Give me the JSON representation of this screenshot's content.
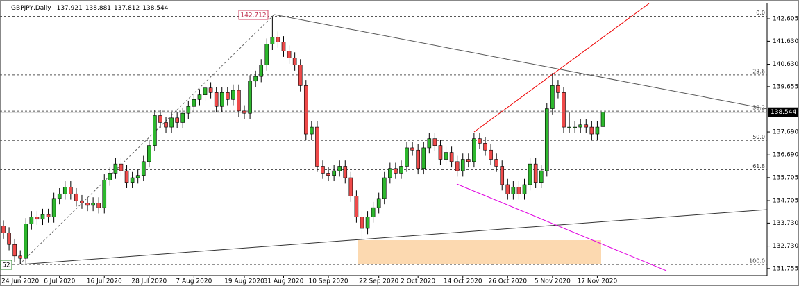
{
  "chart_data": {
    "type": "candlestick",
    "symbol": "GBPJPY,Daily",
    "peak_label": "142.712",
    "corner_label": "52",
    "ylim": [
      131.45,
      143.3
    ],
    "yticks": [
      142.605,
      {
        "value": 141.63,
        "label": "141.630"
      },
      {
        "value": 140.63,
        "label": "140.630"
      },
      139.655,
      {
        "value": 137.69,
        "label": "137.690"
      },
      {
        "value": 136.69,
        "label": "136.690"
      },
      135.705,
      134.705,
      {
        "value": 133.73,
        "label": "133.730"
      },
      {
        "value": 132.73,
        "label": "132.730"
      },
      131.755
    ],
    "fib_levels": [
      {
        "label": "0.0",
        "price": 142.712
      },
      {
        "label": "23.6",
        "price": 140.168
      },
      {
        "label": "38.2",
        "price": 138.593
      },
      {
        "label": "50.0",
        "price": 137.321
      },
      {
        "label": "61.8",
        "price": 136.049
      },
      {
        "label": "100.0",
        "price": 131.93
      }
    ],
    "up_color": "#2db82d",
    "down_color": "#ef4a4a",
    "categories": [
      null,
      null,
      null,
      "24 Jun 2020",
      null,
      null,
      null,
      null,
      null,
      null,
      "6 Jul 2020",
      null,
      null,
      null,
      null,
      null,
      null,
      null,
      "16 Jul 2020",
      null,
      null,
      null,
      null,
      null,
      null,
      null,
      "28 Jul 2020",
      null,
      null,
      null,
      null,
      null,
      null,
      null,
      "7 Aug 2020",
      null,
      null,
      null,
      null,
      null,
      null,
      null,
      null,
      "19 Aug 2020",
      null,
      null,
      null,
      null,
      null,
      null,
      "31 Aug 2020",
      null,
      null,
      null,
      null,
      null,
      null,
      null,
      "10 Sep 2020",
      null,
      null,
      null,
      null,
      null,
      null,
      null,
      null,
      "22 Sep 2020",
      null,
      null,
      null,
      null,
      null,
      null,
      "2 Oct 2020",
      null,
      null,
      null,
      null,
      null,
      null,
      null,
      "14 Oct 2020",
      null,
      null,
      null,
      null,
      null,
      null,
      null,
      "26 Oct 2020",
      null,
      null,
      null,
      null,
      null,
      null,
      null,
      "5 Nov 2020",
      null,
      null,
      null,
      null,
      null,
      null,
      null,
      "17 Nov 2020",
      null
    ],
    "ohlc": [
      [
        133.6,
        133.85,
        133.05,
        133.3
      ],
      [
        133.3,
        133.55,
        132.55,
        132.8
      ],
      [
        132.8,
        133.05,
        132.05,
        132.3
      ],
      [
        132.3,
        132.55,
        131.95,
        132.2
      ],
      [
        132.2,
        133.95,
        131.95,
        133.7
      ],
      [
        133.7,
        134.25,
        133.45,
        134.0
      ],
      [
        134.0,
        134.25,
        133.65,
        133.9
      ],
      [
        133.9,
        134.35,
        133.65,
        134.1
      ],
      [
        134.1,
        134.35,
        133.75,
        134.0
      ],
      [
        134.0,
        135.05,
        133.75,
        134.8
      ],
      [
        134.8,
        135.25,
        134.55,
        135.0
      ],
      [
        135.0,
        135.55,
        134.75,
        135.3
      ],
      [
        135.3,
        135.55,
        134.75,
        135.0
      ],
      [
        135.0,
        135.25,
        134.45,
        134.7
      ],
      [
        134.7,
        134.95,
        134.35,
        134.6
      ],
      [
        134.6,
        134.85,
        134.25,
        134.5
      ],
      [
        134.5,
        134.85,
        134.25,
        134.6
      ],
      [
        134.6,
        134.85,
        134.15,
        134.4
      ],
      [
        134.4,
        135.85,
        134.15,
        135.6
      ],
      [
        135.6,
        136.15,
        135.35,
        135.9
      ],
      [
        135.9,
        136.55,
        135.65,
        136.3
      ],
      [
        136.3,
        136.55,
        135.75,
        136.0
      ],
      [
        136.0,
        136.25,
        135.25,
        135.5
      ],
      [
        135.5,
        135.95,
        135.25,
        135.7
      ],
      [
        135.7,
        136.05,
        135.45,
        135.8
      ],
      [
        135.8,
        136.65,
        135.55,
        136.4
      ],
      [
        136.4,
        137.35,
        136.15,
        137.1
      ],
      [
        137.1,
        138.65,
        136.85,
        138.4
      ],
      [
        138.4,
        138.65,
        137.85,
        138.1
      ],
      [
        138.1,
        138.35,
        137.65,
        137.9
      ],
      [
        137.9,
        138.55,
        137.65,
        138.3
      ],
      [
        138.3,
        138.55,
        137.85,
        138.1
      ],
      [
        138.1,
        138.75,
        137.85,
        138.5
      ],
      [
        138.5,
        139.05,
        138.25,
        138.8
      ],
      [
        138.8,
        139.35,
        138.55,
        139.1
      ],
      [
        139.1,
        139.55,
        138.85,
        139.3
      ],
      [
        139.3,
        139.85,
        139.05,
        139.6
      ],
      [
        139.6,
        139.85,
        139.15,
        139.4
      ],
      [
        139.4,
        139.65,
        138.55,
        138.8
      ],
      [
        138.8,
        139.65,
        138.55,
        139.4
      ],
      [
        139.4,
        139.65,
        138.85,
        139.1
      ],
      [
        139.1,
        139.75,
        138.85,
        139.5
      ],
      [
        139.5,
        139.75,
        138.35,
        138.6
      ],
      [
        138.6,
        138.85,
        138.25,
        138.5
      ],
      [
        138.5,
        140.15,
        138.25,
        139.9
      ],
      [
        139.9,
        140.35,
        139.65,
        140.1
      ],
      [
        140.1,
        140.85,
        139.85,
        140.6
      ],
      [
        140.6,
        141.75,
        140.35,
        141.5
      ],
      [
        141.5,
        142.71,
        141.25,
        141.8
      ],
      [
        141.8,
        142.05,
        141.35,
        141.6
      ],
      [
        141.6,
        141.85,
        140.95,
        141.2
      ],
      [
        141.2,
        141.45,
        140.65,
        140.9
      ],
      [
        140.9,
        141.15,
        140.35,
        140.6
      ],
      [
        140.6,
        140.85,
        139.45,
        139.7
      ],
      [
        139.7,
        139.95,
        137.35,
        137.6
      ],
      [
        137.6,
        138.15,
        137.35,
        137.9
      ],
      [
        137.9,
        138.15,
        135.95,
        136.2
      ],
      [
        136.2,
        136.45,
        135.65,
        135.9
      ],
      [
        135.9,
        136.15,
        135.55,
        135.8
      ],
      [
        135.8,
        136.25,
        135.55,
        136.0
      ],
      [
        136.0,
        136.45,
        135.75,
        136.2
      ],
      [
        136.2,
        136.45,
        135.45,
        135.7
      ],
      [
        135.7,
        135.95,
        134.65,
        134.9
      ],
      [
        134.9,
        135.15,
        133.75,
        134.0
      ],
      [
        134.0,
        134.25,
        132.99,
        133.5
      ],
      [
        133.5,
        134.25,
        133.25,
        134.0
      ],
      [
        134.0,
        134.65,
        133.75,
        134.4
      ],
      [
        134.4,
        135.05,
        134.15,
        134.8
      ],
      [
        134.8,
        135.95,
        134.55,
        135.7
      ],
      [
        135.7,
        136.35,
        135.45,
        136.1
      ],
      [
        136.1,
        136.35,
        135.65,
        135.9
      ],
      [
        135.9,
        136.45,
        135.65,
        136.2
      ],
      [
        136.2,
        137.25,
        135.95,
        137.0
      ],
      [
        137.0,
        137.25,
        136.65,
        136.9
      ],
      [
        136.9,
        137.15,
        135.85,
        136.1
      ],
      [
        136.1,
        137.25,
        135.85,
        137.0
      ],
      [
        137.0,
        137.65,
        136.75,
        137.4
      ],
      [
        137.4,
        137.65,
        136.85,
        137.1
      ],
      [
        137.1,
        137.35,
        136.25,
        136.5
      ],
      [
        136.5,
        137.05,
        136.25,
        136.8
      ],
      [
        136.8,
        137.05,
        136.15,
        136.4
      ],
      [
        136.4,
        136.65,
        135.75,
        136.0
      ],
      [
        136.0,
        136.75,
        135.75,
        136.5
      ],
      [
        136.5,
        136.75,
        136.15,
        136.4
      ],
      [
        136.4,
        137.65,
        136.15,
        137.4
      ],
      [
        137.4,
        137.65,
        136.95,
        137.2
      ],
      [
        137.2,
        137.45,
        136.65,
        136.9
      ],
      [
        136.9,
        137.15,
        136.25,
        136.5
      ],
      [
        136.5,
        136.75,
        135.95,
        136.2
      ],
      [
        136.2,
        136.45,
        135.15,
        135.4
      ],
      [
        135.4,
        135.65,
        134.75,
        135.0
      ],
      [
        135.0,
        135.55,
        134.75,
        135.3
      ],
      [
        135.3,
        135.55,
        134.75,
        135.0
      ],
      [
        135.0,
        135.65,
        134.75,
        135.4
      ],
      [
        135.4,
        136.55,
        135.15,
        136.3
      ],
      [
        136.3,
        136.55,
        135.25,
        135.5
      ],
      [
        135.5,
        136.25,
        135.25,
        136.0
      ],
      [
        136.0,
        138.95,
        135.75,
        138.7
      ],
      [
        138.7,
        140.25,
        138.45,
        139.7
      ],
      [
        139.7,
        139.95,
        139.15,
        139.4
      ],
      [
        139.4,
        139.65,
        137.65,
        137.9
      ],
      [
        137.9,
        138.55,
        137.65,
        137.9
      ],
      [
        137.9,
        138.15,
        137.65,
        137.9
      ],
      [
        137.9,
        138.25,
        137.65,
        138.0
      ],
      [
        138.0,
        138.25,
        137.65,
        137.9
      ],
      [
        137.9,
        138.15,
        137.35,
        137.6
      ],
      [
        137.6,
        138.15,
        137.35,
        137.9
      ],
      [
        137.921,
        138.881,
        137.812,
        138.544
      ]
    ]
  }
}
